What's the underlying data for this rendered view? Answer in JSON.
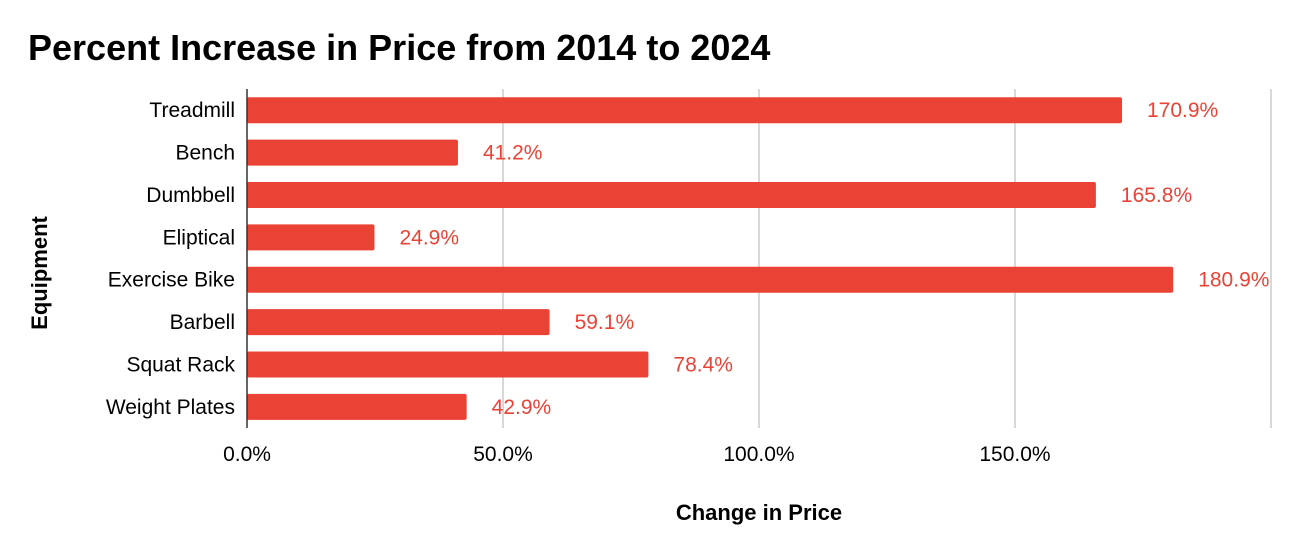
{
  "chart_data": {
    "type": "bar",
    "orientation": "horizontal",
    "title": "Percent Increase in Price from 2014 to 2024",
    "xlabel": "Change in Price",
    "ylabel": "Equipment",
    "categories": [
      "Treadmill",
      "Bench",
      "Dumbbell",
      "Eliptical",
      "Exercise Bike",
      "Barbell",
      "Squat Rack",
      "Weight Plates"
    ],
    "values": [
      170.9,
      41.2,
      165.8,
      24.9,
      180.9,
      59.1,
      78.4,
      42.9
    ],
    "data_labels": [
      "170.9%",
      "41.2%",
      "165.8%",
      "24.9%",
      "180.9%",
      "59.1%",
      "78.4%",
      "42.9%"
    ],
    "xlim": [
      0,
      200
    ],
    "xticks": [
      0,
      50,
      100,
      150
    ],
    "xtick_labels": [
      "0.0%",
      "50.0%",
      "100.0%",
      "150.0%"
    ],
    "grid": true,
    "legend": "none",
    "bar_color": "#ea4335",
    "label_color": "#ea4335"
  }
}
